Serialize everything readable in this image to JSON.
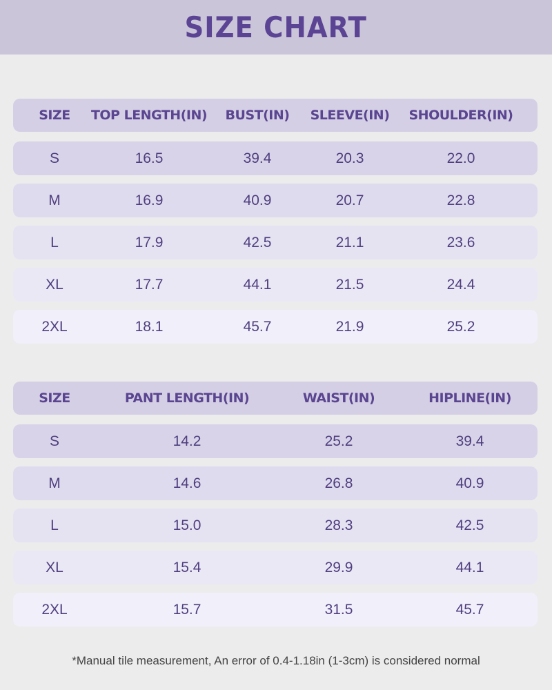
{
  "title": "SIZE CHART",
  "top_table": {
    "headers": [
      "SIZE",
      "TOP LENGTH(IN)",
      "BUST(IN)",
      "SLEEVE(IN)",
      "SHOULDER(IN)"
    ],
    "rows": [
      [
        "S",
        "16.5",
        "39.4",
        "20.3",
        "22.0"
      ],
      [
        "M",
        "16.9",
        "40.9",
        "20.7",
        "22.8"
      ],
      [
        "L",
        "17.9",
        "42.5",
        "21.1",
        "23.6"
      ],
      [
        "XL",
        "17.7",
        "44.1",
        "21.5",
        "24.4"
      ],
      [
        "2XL",
        "18.1",
        "45.7",
        "21.9",
        "25.2"
      ]
    ]
  },
  "bottom_table": {
    "headers": [
      "SIZE",
      "PANT LENGTH(IN)",
      "WAIST(IN)",
      "HIPLINE(IN)"
    ],
    "rows": [
      [
        "S",
        "14.2",
        "25.2",
        "39.4"
      ],
      [
        "M",
        "14.6",
        "26.8",
        "40.9"
      ],
      [
        "L",
        "15.0",
        "28.3",
        "42.5"
      ],
      [
        "XL",
        "15.4",
        "29.9",
        "44.1"
      ],
      [
        "2XL",
        "15.7",
        "31.5",
        "45.7"
      ]
    ]
  },
  "note": "*Manual tile measurement, An error of 0.4-1.18in (1-3cm) is considered normal",
  "colors": {
    "banner": "#cbc5d9",
    "title": "#5b4494",
    "header_row": "#d5cfe5",
    "text": "#4f3f7f"
  }
}
